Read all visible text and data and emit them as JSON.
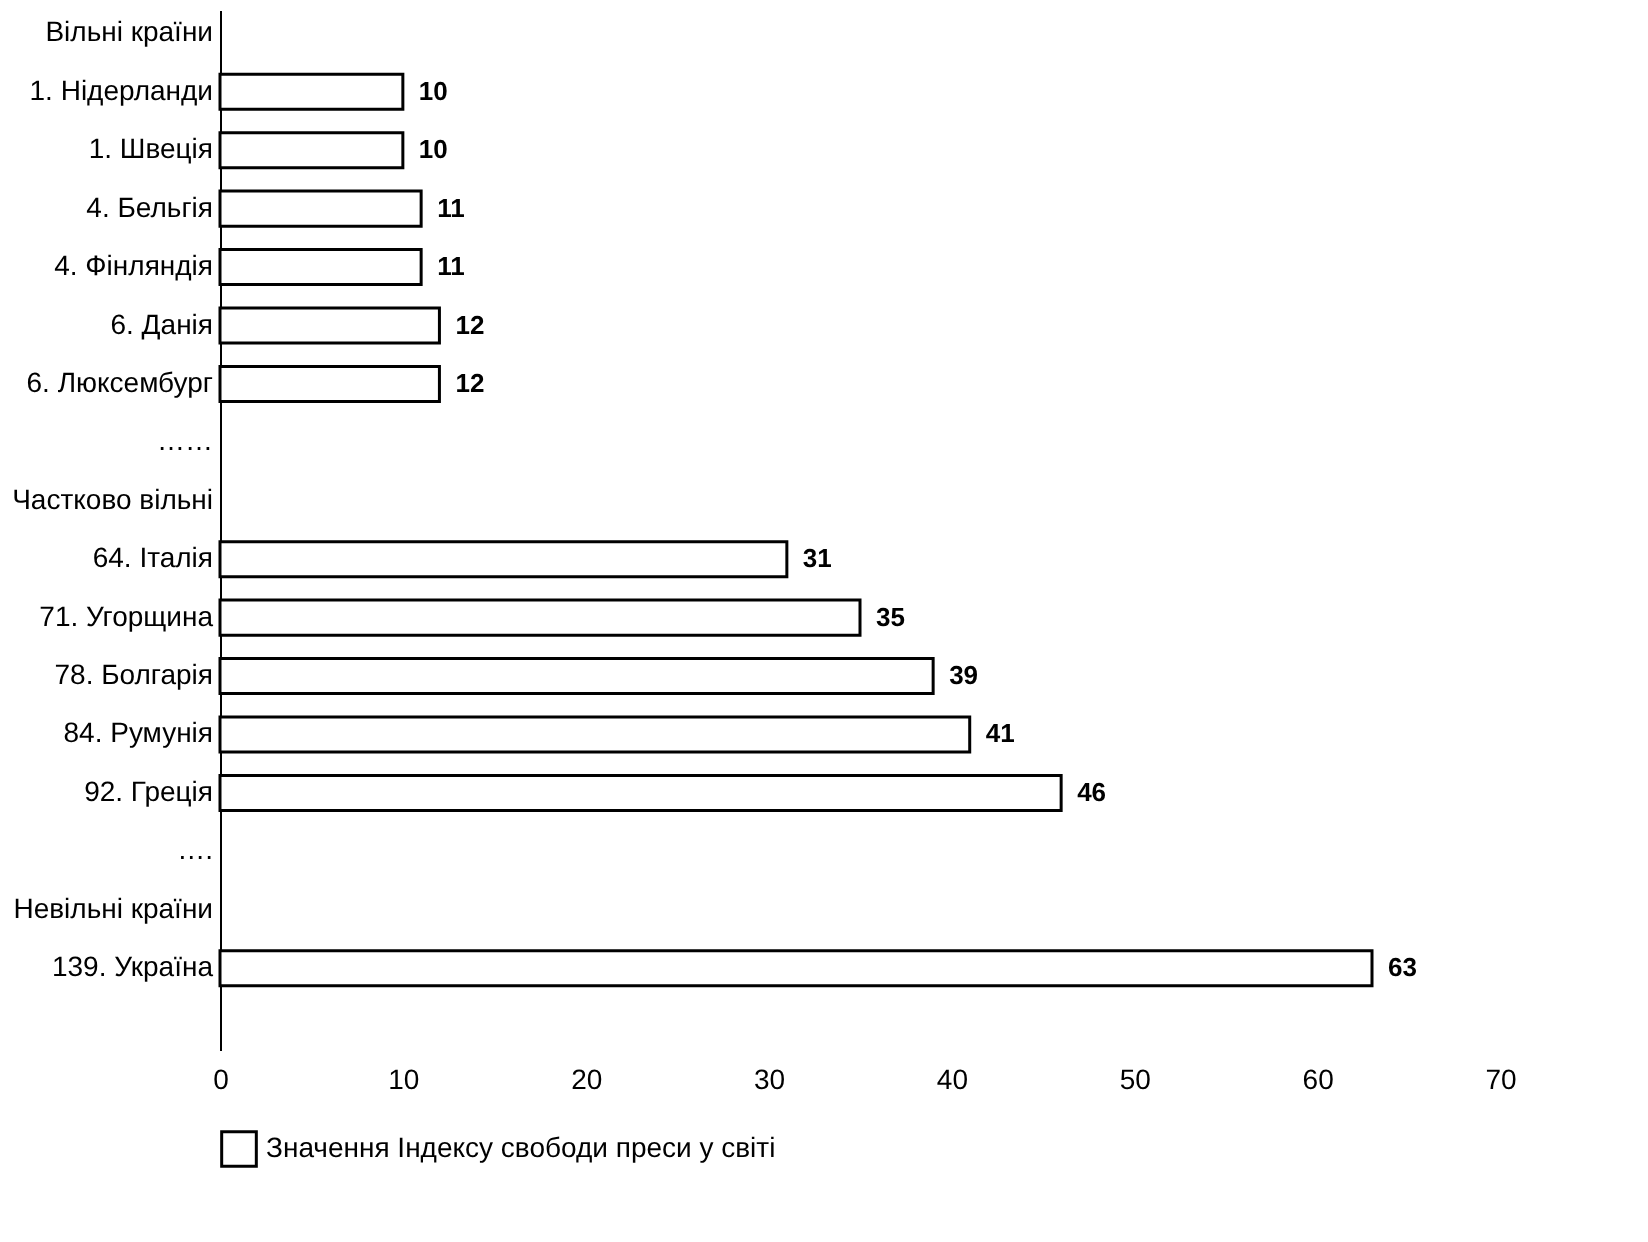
{
  "chart_data": {
    "type": "bar",
    "orientation": "horizontal",
    "categories": [
      "Вільні країни",
      "1. Нідерланди",
      "1. Швеція",
      "4. Бельгія",
      "4. Фінляндія",
      "6. Данія",
      "6. Люксембург",
      "……",
      "Частково вільні",
      "64. Італія",
      "71. Угорщина",
      "78. Болгарія",
      "84. Румунія",
      "92. Греція",
      "….",
      "Невільні країни",
      "139. Україна",
      null
    ],
    "series": [
      {
        "name": "Значення Індексу свободи преси у світі",
        "color": "#ffffff",
        "values": [
          null,
          10,
          10,
          11,
          11,
          12,
          12,
          null,
          null,
          31,
          35,
          39,
          41,
          46,
          null,
          null,
          63,
          null
        ]
      }
    ],
    "xlim": [
      0,
      70
    ],
    "xticks": [
      0,
      10,
      20,
      30,
      40,
      50,
      60,
      70
    ],
    "data_labels": true,
    "grid": false,
    "legend": "bottom"
  }
}
